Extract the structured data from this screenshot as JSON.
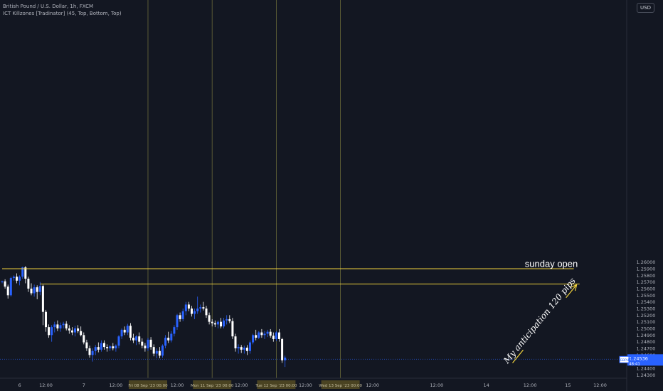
{
  "header": {
    "symbol_line": "British Pound / U.S. Dollar, 1h, FXCM",
    "indicator_line": "ICT Killzones [Tradinator] (45, Top, Bottom, Top)"
  },
  "currency_button": "USD",
  "colors": {
    "background": "#131722",
    "bull": "#2962ff",
    "bear": "#ffffff",
    "annotation": "#f0d23c",
    "session_line": "#6b6a3a",
    "price_label": "#2962ff",
    "axis_text": "#b2b5be"
  },
  "chart_data": {
    "type": "candlestick",
    "symbol": "GBPUSD",
    "timeframe": "1h",
    "ylim": [
      1.2425,
      1.2995
    ],
    "y_ticks": [
      "1.26000",
      "1.25900",
      "1.25800",
      "1.25700",
      "1.25600",
      "1.25500",
      "1.25400",
      "1.25300",
      "1.25200",
      "1.25100",
      "1.25000",
      "1.24900",
      "1.24800",
      "1.24700",
      "1.24600",
      "1.24400",
      "1.24300"
    ],
    "y_tick_values": [
      1.26,
      1.259,
      1.258,
      1.257,
      1.256,
      1.255,
      1.254,
      1.253,
      1.252,
      1.251,
      1.25,
      1.249,
      1.248,
      1.247,
      1.246,
      1.244,
      1.243
    ],
    "x_ticks": [
      {
        "label": "6",
        "bar": 6
      },
      {
        "label": "12:00",
        "bar": 15
      },
      {
        "label": "7",
        "bar": 28
      },
      {
        "label": "12:00",
        "bar": 39
      },
      {
        "label": "12:00",
        "bar": 60
      },
      {
        "label": "12:00",
        "bar": 82
      },
      {
        "label": "12:00",
        "bar": 104
      },
      {
        "label": "12:00",
        "bar": 127
      },
      {
        "label": "12:00",
        "bar": 149
      },
      {
        "label": "14",
        "bar": 166
      },
      {
        "label": "12:00",
        "bar": 181
      },
      {
        "label": "15",
        "bar": 194
      },
      {
        "label": "12:00",
        "bar": 205
      }
    ],
    "session_labels": [
      {
        "label": "Fri 08 Sep '23   00:00",
        "bar": 50
      },
      {
        "label": "Mon 11 Sep '23   00:00",
        "bar": 72
      },
      {
        "label": "Tue 12 Sep '23   00:00",
        "bar": 94
      },
      {
        "label": "Wed 13 Sep '23   00:00",
        "bar": 116
      }
    ],
    "session_lines_bars": [
      50,
      72,
      94,
      116
    ],
    "candles": [
      [
        1.257,
        1.2572,
        1.2568,
        1.2571
      ],
      [
        1.2571,
        1.2574,
        1.256,
        1.2563
      ],
      [
        1.2563,
        1.2566,
        1.2545,
        1.255
      ],
      [
        1.255,
        1.2578,
        1.2548,
        1.2576
      ],
      [
        1.2576,
        1.258,
        1.2572,
        1.2578
      ],
      [
        1.2578,
        1.2583,
        1.2568,
        1.2572
      ],
      [
        1.2572,
        1.258,
        1.2565,
        1.2578
      ],
      [
        1.2578,
        1.2593,
        1.2575,
        1.2592
      ],
      [
        1.2592,
        1.2594,
        1.2568,
        1.2575
      ],
      [
        1.2575,
        1.2578,
        1.2555,
        1.256
      ],
      [
        1.256,
        1.2568,
        1.255,
        1.2553
      ],
      [
        1.2553,
        1.2566,
        1.2548,
        1.2562
      ],
      [
        1.2562,
        1.2565,
        1.2544,
        1.2555
      ],
      [
        1.2555,
        1.257,
        1.255,
        1.2564
      ],
      [
        1.2564,
        1.2566,
        1.2505,
        1.2525
      ],
      [
        1.2525,
        1.2528,
        1.2495,
        1.2502
      ],
      [
        1.2502,
        1.2506,
        1.2486,
        1.249
      ],
      [
        1.249,
        1.2505,
        1.248,
        1.2502
      ],
      [
        1.2502,
        1.251,
        1.2494,
        1.2506
      ],
      [
        1.2506,
        1.2512,
        1.2496,
        1.25
      ],
      [
        1.25,
        1.2509,
        1.2495,
        1.2505
      ],
      [
        1.2505,
        1.251,
        1.25,
        1.2507
      ],
      [
        1.2507,
        1.2511,
        1.2497,
        1.25
      ],
      [
        1.25,
        1.2505,
        1.2492,
        1.2497
      ],
      [
        1.2497,
        1.2502,
        1.249,
        1.2494
      ],
      [
        1.2494,
        1.2504,
        1.2488,
        1.25
      ],
      [
        1.25,
        1.2505,
        1.2493,
        1.2496
      ],
      [
        1.2496,
        1.2503,
        1.2488,
        1.249
      ],
      [
        1.249,
        1.2494,
        1.2476,
        1.2479
      ],
      [
        1.2479,
        1.2483,
        1.2466,
        1.247
      ],
      [
        1.247,
        1.2474,
        1.2456,
        1.246
      ],
      [
        1.246,
        1.247,
        1.245,
        1.2466
      ],
      [
        1.2466,
        1.2475,
        1.246,
        1.2472
      ],
      [
        1.2472,
        1.2479,
        1.2464,
        1.2468
      ],
      [
        1.2468,
        1.2482,
        1.2465,
        1.2478
      ],
      [
        1.2478,
        1.2482,
        1.2468,
        1.2472
      ],
      [
        1.2472,
        1.2476,
        1.2465,
        1.247
      ],
      [
        1.247,
        1.2475,
        1.2466,
        1.2473
      ],
      [
        1.2473,
        1.2478,
        1.2467,
        1.247
      ],
      [
        1.247,
        1.2476,
        1.2465,
        1.2474
      ],
      [
        1.2474,
        1.249,
        1.247,
        1.2488
      ],
      [
        1.2488,
        1.25,
        1.2484,
        1.2498
      ],
      [
        1.2498,
        1.2503,
        1.249,
        1.2494
      ],
      [
        1.2494,
        1.2507,
        1.249,
        1.2504
      ],
      [
        1.2504,
        1.2508,
        1.2482,
        1.2486
      ],
      [
        1.2486,
        1.2492,
        1.2478,
        1.2482
      ],
      [
        1.2482,
        1.249,
        1.2475,
        1.2488
      ],
      [
        1.2488,
        1.2494,
        1.2476,
        1.248
      ],
      [
        1.248,
        1.2485,
        1.247,
        1.2474
      ],
      [
        1.2474,
        1.2478,
        1.2465,
        1.247
      ],
      [
        1.247,
        1.2486,
        1.2466,
        1.2483
      ],
      [
        1.2483,
        1.2487,
        1.2468,
        1.2472
      ],
      [
        1.2472,
        1.2476,
        1.2458,
        1.2462
      ],
      [
        1.2462,
        1.247,
        1.2455,
        1.2466
      ],
      [
        1.2466,
        1.2472,
        1.2455,
        1.2459
      ],
      [
        1.2459,
        1.2476,
        1.2456,
        1.2474
      ],
      [
        1.2474,
        1.249,
        1.247,
        1.2486
      ],
      [
        1.2486,
        1.2495,
        1.2478,
        1.2482
      ],
      [
        1.2482,
        1.2496,
        1.2479,
        1.2492
      ],
      [
        1.2492,
        1.2505,
        1.2488,
        1.2502
      ],
      [
        1.2502,
        1.2522,
        1.2498,
        1.252
      ],
      [
        1.252,
        1.2524,
        1.251,
        1.2514
      ],
      [
        1.2514,
        1.253,
        1.2511,
        1.2526
      ],
      [
        1.2526,
        1.254,
        1.252,
        1.2536
      ],
      [
        1.2536,
        1.254,
        1.2526,
        1.253
      ],
      [
        1.253,
        1.2534,
        1.2518,
        1.2522
      ],
      [
        1.2522,
        1.253,
        1.2514,
        1.2526
      ],
      [
        1.2526,
        1.2548,
        1.2522,
        1.253
      ],
      [
        1.253,
        1.2536,
        1.2524,
        1.2532
      ],
      [
        1.2532,
        1.254,
        1.2527,
        1.253
      ],
      [
        1.253,
        1.2534,
        1.2516,
        1.252
      ],
      [
        1.252,
        1.2524,
        1.2506,
        1.251
      ],
      [
        1.251,
        1.2514,
        1.2503,
        1.2508
      ],
      [
        1.2508,
        1.2512,
        1.2502,
        1.2506
      ],
      [
        1.2506,
        1.2512,
        1.25,
        1.251
      ],
      [
        1.251,
        1.2516,
        1.25,
        1.2503
      ],
      [
        1.2503,
        1.2516,
        1.25,
        1.2512
      ],
      [
        1.2512,
        1.252,
        1.2506,
        1.2514
      ],
      [
        1.2514,
        1.252,
        1.2508,
        1.2511
      ],
      [
        1.2511,
        1.2516,
        1.2484,
        1.2488
      ],
      [
        1.2488,
        1.2492,
        1.2465,
        1.247
      ],
      [
        1.247,
        1.2476,
        1.2462,
        1.2472
      ],
      [
        1.2472,
        1.2475,
        1.2463,
        1.2468
      ],
      [
        1.2468,
        1.2474,
        1.2462,
        1.2471
      ],
      [
        1.2471,
        1.2475,
        1.246,
        1.2466
      ],
      [
        1.2466,
        1.2482,
        1.2462,
        1.2479
      ],
      [
        1.2479,
        1.2492,
        1.2476,
        1.249
      ],
      [
        1.249,
        1.2498,
        1.2482,
        1.2486
      ],
      [
        1.2486,
        1.2496,
        1.2484,
        1.2494
      ],
      [
        1.2494,
        1.2499,
        1.2486,
        1.249
      ],
      [
        1.249,
        1.2496,
        1.2484,
        1.2492
      ],
      [
        1.2492,
        1.2498,
        1.2487,
        1.2495
      ],
      [
        1.2495,
        1.2499,
        1.2486,
        1.2489
      ],
      [
        1.2489,
        1.2494,
        1.248,
        1.2484
      ],
      [
        1.2484,
        1.2496,
        1.2481,
        1.2494
      ],
      [
        1.2494,
        1.2499,
        1.248,
        1.2484
      ],
      [
        1.2484,
        1.2486,
        1.2448,
        1.2452
      ],
      [
        1.2452,
        1.2459,
        1.2442,
        1.2456
      ]
    ],
    "hlines": [
      {
        "price": 1.259,
        "from_bar": 0,
        "to_bar": 196
      },
      {
        "price": 1.2567,
        "from_bar": 13,
        "to_bar": 198
      }
    ],
    "arrow": {
      "from": {
        "bar": 175,
        "price": 1.2448
      },
      "to": {
        "bar": 197,
        "price": 1.2566
      }
    },
    "annotations": [
      {
        "text": "sunday open",
        "bar": 188,
        "price": 1.2598
      },
      {
        "text": "My anticipation 120 pips",
        "bar": 186,
        "price": 1.2507
      }
    ],
    "current_price": {
      "value": 1.24536,
      "symbol": "GBPUSD",
      "label": "1.24536",
      "countdown": "48:41"
    }
  }
}
